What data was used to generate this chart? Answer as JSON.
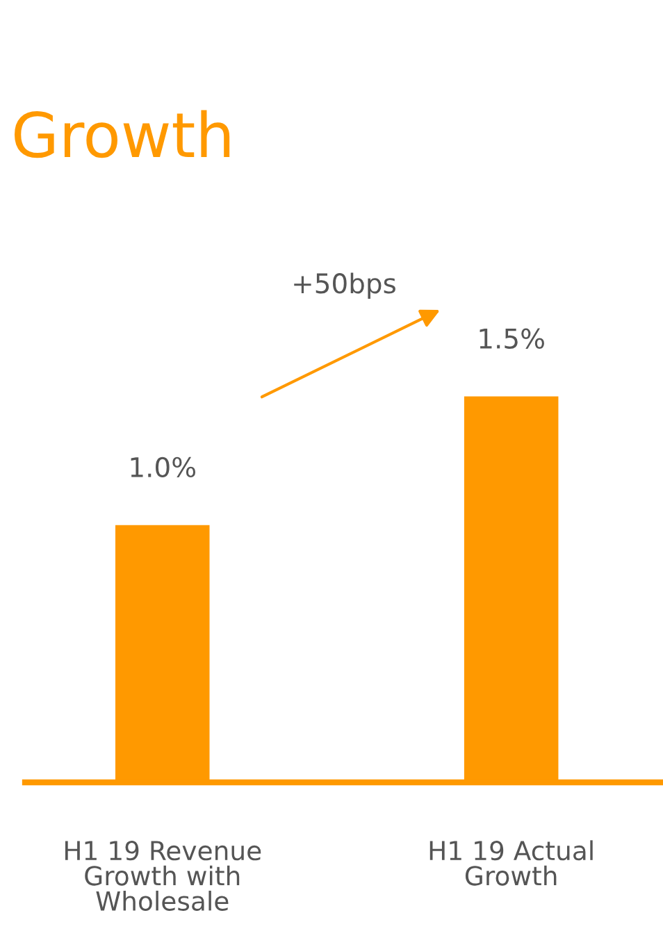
{
  "chart_data": {
    "type": "bar",
    "title": "Growth",
    "categories": [
      "H1 19 Revenue\nGrowth with\nWholesale",
      "H1 19 Actual\nGrowth"
    ],
    "values": [
      1.0,
      1.5
    ],
    "color": "#ff9900",
    "value_labels": [
      "1.0%",
      "1.5%"
    ],
    "annotations": [
      "+50bps"
    ],
    "grid": false,
    "legend": false
  }
}
